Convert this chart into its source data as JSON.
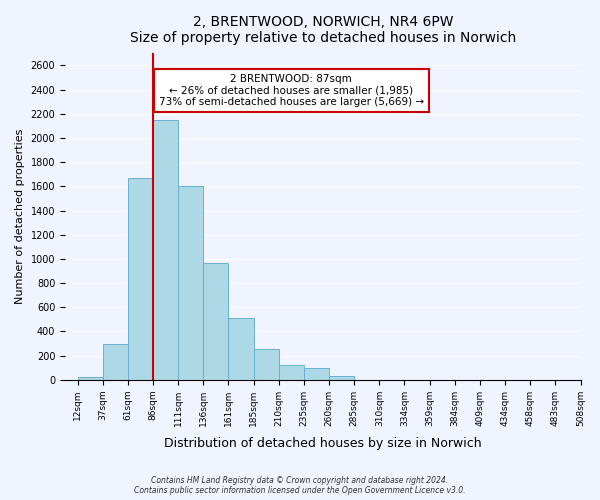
{
  "title": "2, BRENTWOOD, NORWICH, NR4 6PW",
  "subtitle": "Size of property relative to detached houses in Norwich",
  "xlabel": "Distribution of detached houses by size in Norwich",
  "ylabel": "Number of detached properties",
  "bin_labels": [
    "12sqm",
    "37sqm",
    "61sqm",
    "86sqm",
    "111sqm",
    "136sqm",
    "161sqm",
    "185sqm",
    "210sqm",
    "235sqm",
    "260sqm",
    "285sqm",
    "310sqm",
    "334sqm",
    "359sqm",
    "384sqm",
    "409sqm",
    "434sqm",
    "458sqm",
    "483sqm",
    "508sqm"
  ],
  "bar_values": [
    20,
    300,
    1670,
    2150,
    1600,
    970,
    510,
    255,
    125,
    95,
    30,
    0,
    0,
    0,
    0,
    0,
    0,
    0,
    0,
    0,
    20
  ],
  "bar_color": "#add8e6",
  "bar_edge_color": "#6ab0d4",
  "property_line_x": 87,
  "property_line_color": "#cc0000",
  "annotation_title": "2 BRENTWOOD: 87sqm",
  "annotation_line1": "← 26% of detached houses are smaller (1,985)",
  "annotation_line2": "73% of semi-detached houses are larger (5,669) →",
  "annotation_box_color": "#ffffff",
  "annotation_box_edge": "#cc0000",
  "ylim": [
    0,
    2700
  ],
  "yticks": [
    0,
    200,
    400,
    600,
    800,
    1000,
    1200,
    1400,
    1600,
    1800,
    2000,
    2200,
    2400,
    2600
  ],
  "footer_line1": "Contains HM Land Registry data © Crown copyright and database right 2024.",
  "footer_line2": "Contains public sector information licensed under the Open Government Licence v3.0.",
  "background_color": "#f0f4ff",
  "plot_background": "#f0f4ff"
}
